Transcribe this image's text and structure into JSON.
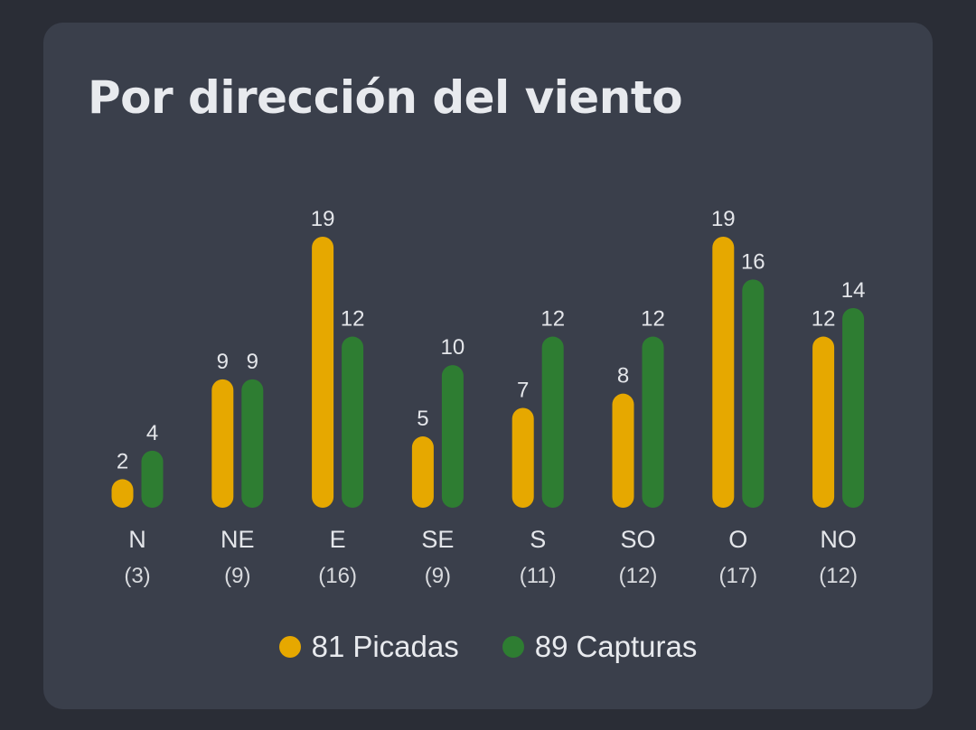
{
  "card": {
    "title": "Por dirección del viento"
  },
  "legend": [
    {
      "count": "81",
      "label": "Picadas",
      "color": "#e6a800"
    },
    {
      "count": "89",
      "label": "Capturas",
      "color": "#2e7d32"
    }
  ],
  "chart_data": {
    "type": "bar",
    "title": "Por dirección del viento",
    "categories": [
      "N",
      "NE",
      "E",
      "SE",
      "S",
      "SO",
      "O",
      "NO"
    ],
    "category_counts": [
      "(3)",
      "(9)",
      "(16)",
      "(9)",
      "(11)",
      "(12)",
      "(17)",
      "(12)"
    ],
    "series": [
      {
        "name": "Picadas",
        "color": "#e6a800",
        "values": [
          2,
          9,
          19,
          5,
          7,
          8,
          19,
          12
        ]
      },
      {
        "name": "Capturas",
        "color": "#2e7d32",
        "values": [
          4,
          9,
          12,
          10,
          12,
          12,
          16,
          14
        ]
      }
    ],
    "ylim": [
      0,
      19
    ],
    "grid": false,
    "legend_position": "bottom"
  }
}
